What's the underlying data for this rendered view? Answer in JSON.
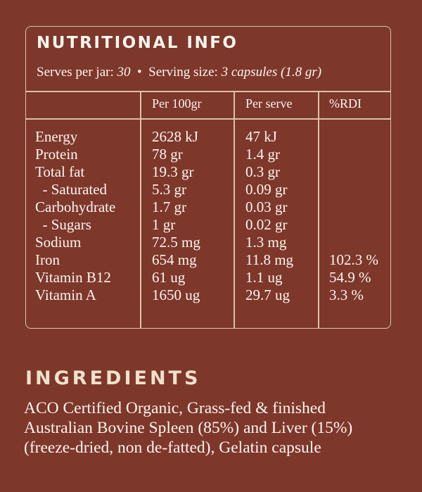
{
  "nutrition": {
    "title": "NUTRITIONAL INFO",
    "serves_label": "Serves per jar:",
    "serves_value": "30",
    "separator": "•",
    "serving_label": "Serving size:",
    "serving_value": "3 capsules (1.8 gr)",
    "columns": [
      "",
      "Per 100gr",
      "Per serve",
      "%RDI"
    ],
    "rows": [
      {
        "name": "Energy",
        "per100": "2628 kJ",
        "perserve": "47 kJ",
        "rdi": ""
      },
      {
        "name": "Protein",
        "per100": "78 gr",
        "perserve": "1.4 gr",
        "rdi": ""
      },
      {
        "name": "Total fat",
        "per100": "19.3 gr",
        "perserve": "0.3 gr",
        "rdi": ""
      },
      {
        "name": "  - Saturated",
        "per100": "5.3 gr",
        "perserve": "0.09 gr",
        "rdi": ""
      },
      {
        "name": "Carbohydrate",
        "per100": "1.7 gr",
        "perserve": "0.03 gr",
        "rdi": ""
      },
      {
        "name": "  - Sugars",
        "per100": "1 gr",
        "perserve": "0.02 gr",
        "rdi": ""
      },
      {
        "name": "Sodium",
        "per100": "72.5 mg",
        "perserve": "1.3 mg",
        "rdi": ""
      },
      {
        "name": "Iron",
        "per100": "654 mg",
        "perserve": "11.8 mg",
        "rdi": "102.3 %"
      },
      {
        "name": "Vitamin B12",
        "per100": "61 ug",
        "perserve": "1.1 ug",
        "rdi": "54.9 %"
      },
      {
        "name": "Vitamin A",
        "per100": "1650 ug",
        "perserve": "29.7 ug",
        "rdi": "3.3 %"
      }
    ]
  },
  "ingredients": {
    "title": "INGREDIENTS",
    "lines": [
      "ACO Certified Organic, Grass-fed & finished",
      "Australian Bovine Spleen (85%) and Liver (15%)",
      "(freeze-dried, non de-fatted), Gelatin capsule"
    ]
  },
  "colors": {
    "background": "#7e372b",
    "border": "#d9c3a6",
    "text": "#fbf6ee",
    "heading_cream": "#efe2cc"
  }
}
